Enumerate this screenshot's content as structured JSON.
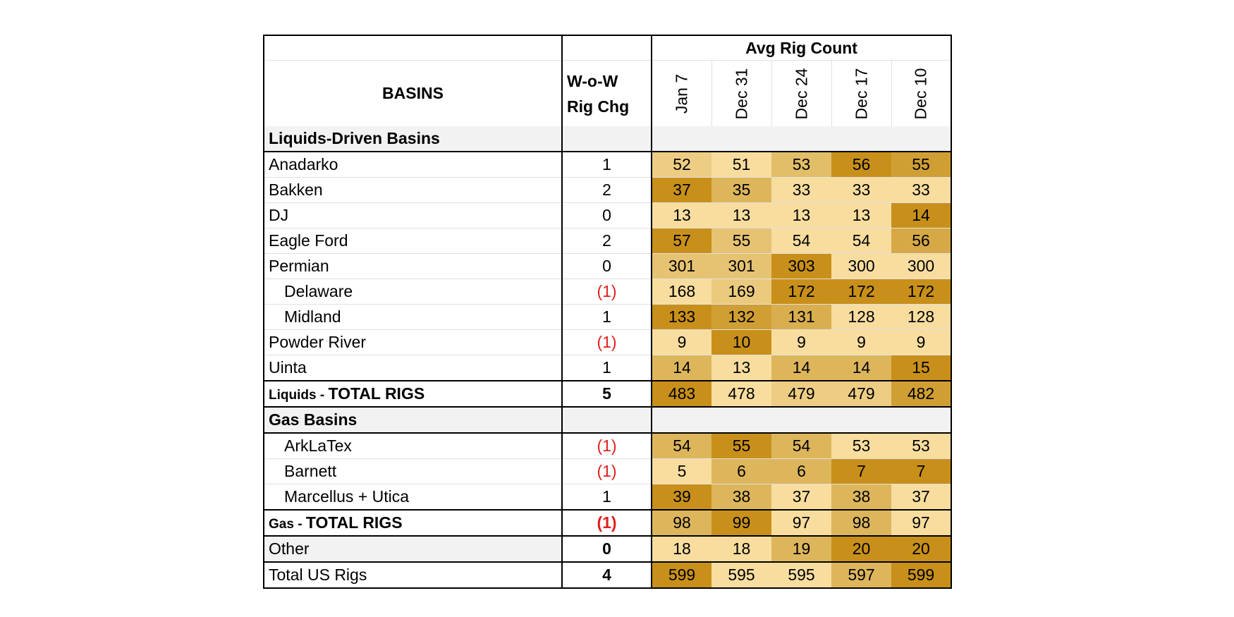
{
  "chart_data": {
    "type": "table",
    "header": {
      "group_label": "Avg Rig Count",
      "basins_label": "BASINS",
      "chg_label_line1": "W-o-W",
      "chg_label_line2": "Rig Chg",
      "dates": [
        "Jan 7",
        "Dec 31",
        "Dec 24",
        "Dec 17",
        "Dec 10"
      ]
    },
    "rows": [
      {
        "kind": "section",
        "name": "Liquids-Driven Basins"
      },
      {
        "kind": "data",
        "name": "Anadarko",
        "chg": "1",
        "values": [
          52,
          51,
          53,
          56,
          55
        ]
      },
      {
        "kind": "data",
        "name": "Bakken",
        "chg": "2",
        "values": [
          37,
          35,
          33,
          33,
          33
        ]
      },
      {
        "kind": "data",
        "name": "DJ",
        "chg": "0",
        "values": [
          13,
          13,
          13,
          13,
          14
        ]
      },
      {
        "kind": "data",
        "name": "Eagle Ford",
        "chg": "2",
        "values": [
          57,
          55,
          54,
          54,
          56
        ]
      },
      {
        "kind": "data",
        "name": "Permian",
        "chg": "0",
        "values": [
          301,
          301,
          303,
          300,
          300
        ]
      },
      {
        "kind": "data",
        "name": "Delaware",
        "indent": true,
        "chg": "(1)",
        "values": [
          168,
          169,
          172,
          172,
          172
        ]
      },
      {
        "kind": "data",
        "name": "Midland",
        "indent": true,
        "chg": "1",
        "values": [
          133,
          132,
          131,
          128,
          128
        ]
      },
      {
        "kind": "data",
        "name": "Powder River",
        "chg": "(1)",
        "values": [
          9,
          10,
          9,
          9,
          9
        ]
      },
      {
        "kind": "data",
        "name": "Uinta",
        "chg": "1",
        "values": [
          14,
          13,
          14,
          14,
          15
        ]
      },
      {
        "kind": "total",
        "prefix": "Liquids - ",
        "name": "TOTAL RIGS",
        "chg": "5",
        "values": [
          483,
          478,
          479,
          479,
          482
        ]
      },
      {
        "kind": "section",
        "name": "Gas Basins"
      },
      {
        "kind": "data",
        "name": "ArkLaTex",
        "indent": true,
        "chg": "(1)",
        "values": [
          54,
          55,
          54,
          53,
          53
        ]
      },
      {
        "kind": "data",
        "name": "Barnett",
        "indent": true,
        "chg": "(1)",
        "values": [
          5,
          6,
          6,
          7,
          7
        ]
      },
      {
        "kind": "data",
        "name": "Marcellus + Utica",
        "indent": true,
        "chg": "1",
        "values": [
          39,
          38,
          37,
          38,
          37
        ]
      },
      {
        "kind": "total",
        "prefix": "Gas - ",
        "name": "TOTAL RIGS",
        "chg": "(1)",
        "values": [
          98,
          99,
          97,
          98,
          97
        ]
      },
      {
        "kind": "other",
        "name": "Other",
        "chg": "0",
        "values": [
          18,
          18,
          19,
          20,
          20
        ]
      },
      {
        "kind": "grand",
        "name": "Total US Rigs",
        "chg": "4",
        "values": [
          599,
          595,
          595,
          597,
          599
        ]
      }
    ]
  },
  "colors": {
    "heat_dark": "#c8901a",
    "heat_mid": "#ddb65c",
    "heat_light": "#f8dd9f",
    "negative": "#e0201c"
  }
}
